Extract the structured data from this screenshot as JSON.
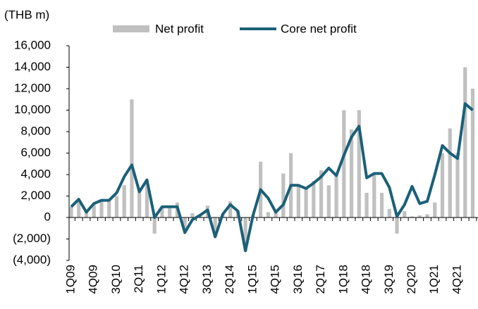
{
  "chart_data": {
    "type": "bar-line",
    "unit_label": "(THB m)",
    "categories": [
      "1Q09",
      null,
      null,
      "4Q09",
      null,
      null,
      "3Q10",
      null,
      null,
      "2Q11",
      null,
      null,
      "1Q12",
      null,
      null,
      "4Q12",
      null,
      null,
      "3Q13",
      null,
      null,
      "2Q14",
      null,
      null,
      "1Q15",
      null,
      null,
      "4Q15",
      null,
      null,
      "3Q16",
      null,
      null,
      "2Q17",
      null,
      null,
      "1Q18",
      null,
      null,
      "4Q18",
      null,
      null,
      "3Q19",
      null,
      null,
      "2Q20",
      null,
      null,
      "1Q21",
      null,
      null,
      "4Q21",
      null,
      null
    ],
    "series": [
      {
        "name": "Net profit",
        "type": "bar",
        "color": "#c0c0c0",
        "values": [
          1000,
          1600,
          500,
          1200,
          1700,
          1700,
          2000,
          3000,
          11000,
          2400,
          3500,
          -1500,
          1000,
          1000,
          1400,
          -1400,
          400,
          200,
          1100,
          -1800,
          300,
          1500,
          600,
          -3100,
          200,
          5200,
          500,
          500,
          4100,
          6000,
          3100,
          2700,
          3400,
          4400,
          3000,
          3900,
          10000,
          8200,
          10000,
          2300,
          4100,
          2300,
          800,
          -1500,
          600,
          100,
          200,
          300,
          1400,
          6000,
          8300,
          6000,
          14000,
          12000
        ]
      },
      {
        "name": "Core net profit",
        "type": "line",
        "color": "#1a6078",
        "values": [
          1000,
          1700,
          500,
          1300,
          1600,
          1600,
          2300,
          3800,
          4900,
          2400,
          3500,
          0,
          1000,
          1000,
          1000,
          -1400,
          -200,
          200,
          700,
          -1800,
          300,
          1200,
          600,
          -3100,
          200,
          2600,
          1800,
          500,
          1200,
          3000,
          3000,
          2700,
          3200,
          3800,
          4600,
          3900,
          5800,
          7500,
          8500,
          3700,
          4100,
          4100,
          2800,
          100,
          1200,
          2900,
          1300,
          1500,
          4000,
          6700,
          6000,
          5500,
          10600,
          10000
        ]
      }
    ],
    "ylim": [
      -4000,
      16000
    ],
    "yticks": [
      {
        "value": -4000,
        "label": "(4,000)"
      },
      {
        "value": -2000,
        "label": "(2,000)"
      },
      0,
      {
        "value": 2000,
        "label": "2,000"
      },
      {
        "value": 4000,
        "label": "4,000"
      },
      {
        "value": 6000,
        "label": "6,000"
      },
      {
        "value": 8000,
        "label": "8,000"
      },
      {
        "value": 10000,
        "label": "10,000"
      },
      {
        "value": 12000,
        "label": "12,000"
      },
      {
        "value": 14000,
        "label": "14,000"
      },
      {
        "value": 16000,
        "label": "16,000"
      }
    ],
    "grid": false
  }
}
